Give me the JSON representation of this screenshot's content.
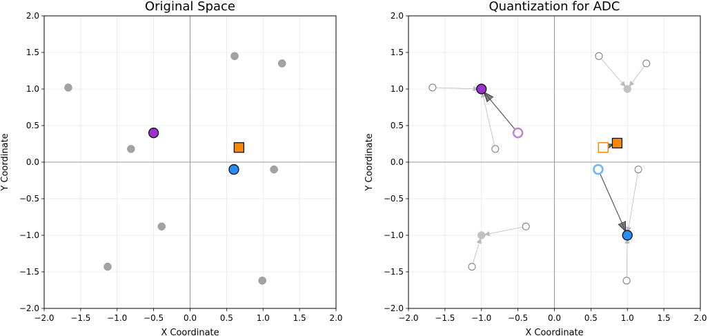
{
  "chart_data": [
    {
      "type": "scatter",
      "title": "Original Space",
      "xlabel": "X Coordinate",
      "ylabel": "Y Coordinate",
      "xlim": [
        -2.0,
        2.0
      ],
      "ylim": [
        -2.0,
        2.0
      ],
      "xticks": [
        "−2.0",
        "−1.5",
        "−1.0",
        "−0.5",
        "0.0",
        "0.5",
        "1.0",
        "1.5",
        "2.0"
      ],
      "yticks": [
        "−2.0",
        "−1.5",
        "−1.0",
        "−0.5",
        "0.0",
        "0.5",
        "1.0",
        "1.5",
        "2.0"
      ],
      "grid": true,
      "series": [
        {
          "name": "other points",
          "marker": "circle",
          "style": "filled-gray",
          "color": "#999999",
          "x": [
            -1.67,
            -0.81,
            0.61,
            1.26,
            1.15,
            -0.39,
            -1.13,
            0.99
          ],
          "y": [
            1.02,
            0.18,
            1.45,
            1.35,
            -0.1,
            -0.88,
            -1.43,
            -1.62
          ]
        },
        {
          "name": "purple point",
          "marker": "circle",
          "style": "filled-large",
          "color": "#9b30d0",
          "x": [
            -0.5
          ],
          "y": [
            0.4
          ]
        },
        {
          "name": "blue point",
          "marker": "circle",
          "style": "filled-large",
          "color": "#2a8cf0",
          "x": [
            0.6
          ],
          "y": [
            -0.1
          ]
        },
        {
          "name": "orange square",
          "marker": "square",
          "style": "filled-large",
          "color": "#f5890f",
          "x": [
            0.67
          ],
          "y": [
            0.2
          ]
        }
      ],
      "arrows": []
    },
    {
      "type": "scatter",
      "title": "Quantization for ADC",
      "xlabel": "X Coordinate",
      "ylabel": "Y Coordinate",
      "xlim": [
        -2.0,
        2.0
      ],
      "ylim": [
        -2.0,
        2.0
      ],
      "xticks": [
        "−2.0",
        "−1.5",
        "−1.0",
        "−0.5",
        "0.0",
        "0.5",
        "1.0",
        "1.5",
        "2.0"
      ],
      "yticks": [
        "−2.0",
        "−1.5",
        "−1.0",
        "−0.5",
        "0.0",
        "0.5",
        "1.0",
        "1.5",
        "2.0"
      ],
      "grid": true,
      "series": [
        {
          "name": "original points",
          "marker": "circle",
          "style": "hollow",
          "color": "#777777",
          "x": [
            -1.67,
            -0.81,
            0.61,
            1.26,
            1.15,
            -0.39,
            -1.13,
            0.99
          ],
          "y": [
            1.02,
            0.18,
            1.45,
            1.35,
            -0.1,
            -0.88,
            -1.43,
            -1.62
          ]
        },
        {
          "name": "quantized points",
          "marker": "circle",
          "style": "faded-gray",
          "color": "#bbbbbb",
          "x": [
            1.0,
            -1.0
          ],
          "y": [
            1.0,
            -1.0
          ]
        },
        {
          "name": "purple original",
          "marker": "circle",
          "style": "hollow-thick",
          "color": "#c080e0",
          "x": [
            -0.5
          ],
          "y": [
            0.4
          ]
        },
        {
          "name": "blue original",
          "marker": "circle",
          "style": "hollow-thick",
          "color": "#70b4f5",
          "x": [
            0.6
          ],
          "y": [
            -0.1
          ]
        },
        {
          "name": "orange original",
          "marker": "square",
          "style": "hollow",
          "color": "#f5890f",
          "x": [
            0.67
          ],
          "y": [
            0.2
          ]
        },
        {
          "name": "purple quantized",
          "marker": "circle",
          "style": "filled-large",
          "color": "#9b30d0",
          "x": [
            -1.0
          ],
          "y": [
            1.0
          ]
        },
        {
          "name": "blue quantized",
          "marker": "circle",
          "style": "filled-large",
          "color": "#2a8cf0",
          "x": [
            1.0
          ],
          "y": [
            -1.0
          ]
        },
        {
          "name": "orange quantized",
          "marker": "square",
          "style": "filled-large",
          "color": "#f5890f",
          "x": [
            0.86
          ],
          "y": [
            0.26
          ]
        }
      ],
      "arrows": [
        {
          "from": [
            -1.67,
            1.02
          ],
          "to": [
            -1.0,
            1.0
          ],
          "kind": "light"
        },
        {
          "from": [
            -0.81,
            0.18
          ],
          "to": [
            -1.0,
            1.0
          ],
          "kind": "light"
        },
        {
          "from": [
            0.61,
            1.45
          ],
          "to": [
            1.0,
            1.0
          ],
          "kind": "light"
        },
        {
          "from": [
            1.26,
            1.35
          ],
          "to": [
            1.0,
            1.0
          ],
          "kind": "light"
        },
        {
          "from": [
            1.15,
            -0.1
          ],
          "to": [
            1.0,
            -1.0
          ],
          "kind": "light"
        },
        {
          "from": [
            0.99,
            -1.62
          ],
          "to": [
            1.0,
            -1.0
          ],
          "kind": "light"
        },
        {
          "from": [
            -0.39,
            -0.88
          ],
          "to": [
            -1.0,
            -1.0
          ],
          "kind": "light"
        },
        {
          "from": [
            -1.13,
            -1.43
          ],
          "to": [
            -1.0,
            -1.0
          ],
          "kind": "light"
        },
        {
          "from": [
            -0.5,
            0.4
          ],
          "to": [
            -1.0,
            1.0
          ],
          "kind": "dark"
        },
        {
          "from": [
            0.6,
            -0.1
          ],
          "to": [
            1.0,
            -1.0
          ],
          "kind": "dark"
        },
        {
          "from": [
            0.67,
            0.2
          ],
          "to": [
            0.86,
            0.26
          ],
          "kind": "dark"
        }
      ]
    }
  ]
}
